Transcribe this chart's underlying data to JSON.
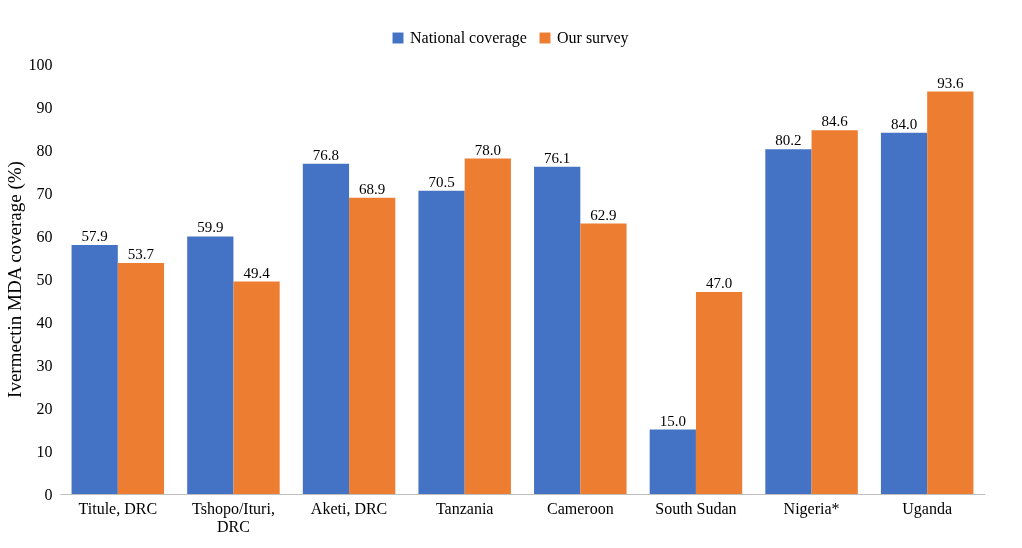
{
  "chart_data": {
    "type": "bar",
    "ylabel": "Ivermectin MDA coverage (%)",
    "categories": [
      "Titule, DRC",
      "Tshopo/Ituri, DRC",
      "Aketi, DRC",
      "Tanzania",
      "Cameroon",
      "South Sudan",
      "Nigeria*",
      "Uganda"
    ],
    "series": [
      {
        "name": "National coverage",
        "color": "#4472c4",
        "values": [
          57.9,
          59.9,
          76.8,
          70.5,
          76.1,
          15.0,
          80.2,
          84.0
        ],
        "value_labels": [
          "57.9",
          "59.9",
          "76.8",
          "70.5",
          "76.1",
          "15.0",
          "80.2",
          "84.0"
        ]
      },
      {
        "name": "Our survey",
        "color": "#ed7d31",
        "values": [
          53.7,
          49.4,
          68.9,
          78.0,
          62.9,
          47.0,
          84.6,
          93.6
        ],
        "value_labels": [
          "53.7",
          "49.4",
          "68.9",
          "78.0",
          "62.9",
          "47.0",
          "84.6",
          "93.6"
        ]
      }
    ],
    "ylim": [
      0,
      100
    ],
    "yticks": [
      0,
      10,
      20,
      30,
      40,
      50,
      60,
      70,
      80,
      90,
      100
    ],
    "legend": "top",
    "grid": false
  }
}
